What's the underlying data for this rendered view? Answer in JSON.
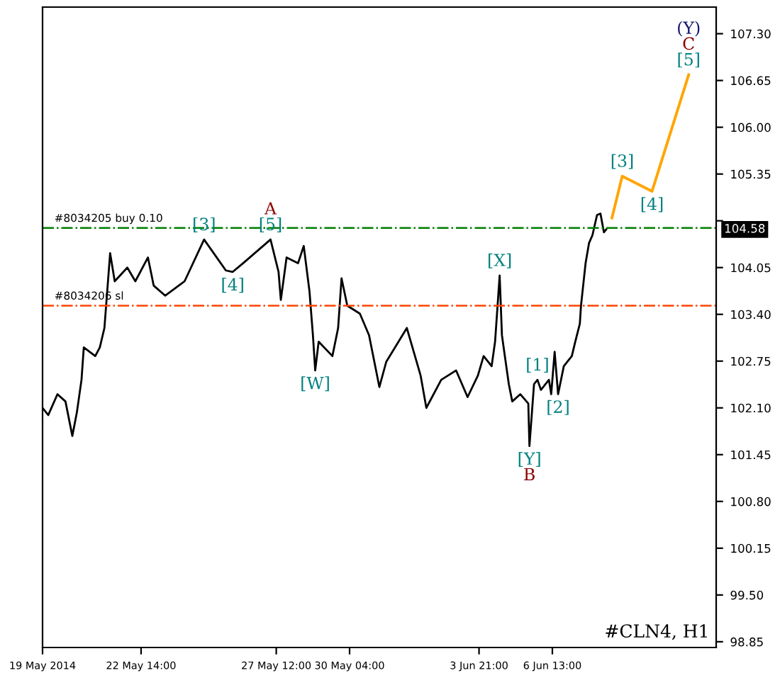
{
  "chart_data": {
    "type": "line",
    "xlim": [
      "2014-05-19T00:00",
      "2014-06-12T12:00"
    ],
    "ylim": [
      98.77,
      107.67
    ],
    "xticks": [
      {
        "value": "2014-05-19T00:00",
        "label": "19 May 2014"
      },
      {
        "value": "2014-05-22T14:00",
        "label": "22 May 14:00"
      },
      {
        "value": "2014-05-27T12:00",
        "label": "27 May 12:00"
      },
      {
        "value": "2014-05-30T04:00",
        "label": "30 May 04:00"
      },
      {
        "value": "2014-06-03T21:00",
        "label": "3 Jun 21:00"
      },
      {
        "value": "2014-06-06T13:00",
        "label": "6 Jun 13:00"
      }
    ],
    "yticks": [
      {
        "value": 98.85,
        "label": "98.85"
      },
      {
        "value": 99.5,
        "label": "99.50"
      },
      {
        "value": 100.15,
        "label": "100.15"
      },
      {
        "value": 100.8,
        "label": "100.80"
      },
      {
        "value": 101.45,
        "label": "101.45"
      },
      {
        "value": 102.1,
        "label": "102.10"
      },
      {
        "value": 102.75,
        "label": "102.75"
      },
      {
        "value": 103.4,
        "label": "103.40"
      },
      {
        "value": 104.05,
        "label": "104.05"
      },
      {
        "value": 104.7,
        "label": null
      },
      {
        "value": 105.35,
        "label": "105.35"
      },
      {
        "value": 106.0,
        "label": "106.00"
      },
      {
        "value": 106.65,
        "label": "106.65"
      },
      {
        "value": 107.3,
        "label": "107.30"
      }
    ],
    "grid": false,
    "series": [
      {
        "color": "#000000",
        "x": [
          "2014-05-19T00:00",
          "2014-05-19T05:00",
          "2014-05-19T13:00",
          "2014-05-19T20:00",
          "2014-05-20T02:00",
          "2014-05-20T06:00",
          "2014-05-20T10:00",
          "2014-05-20T12:00",
          "2014-05-20T22:00",
          "2014-05-21T02:00",
          "2014-05-21T06:00",
          "2014-05-21T11:00",
          "2014-05-21T15:00",
          "2014-05-22T02:00",
          "2014-05-22T09:00",
          "2014-05-22T20:00",
          "2014-05-23T01:00",
          "2014-05-23T11:00",
          "2014-05-24T04:00",
          "2014-05-24T21:00",
          "2014-05-25T16:00",
          "2014-05-25T22:00",
          "2014-05-26T07:00",
          "2014-05-27T07:00",
          "2014-05-27T14:00",
          "2014-05-27T16:00",
          "2014-05-27T21:00",
          "2014-05-28T07:00",
          "2014-05-28T12:00",
          "2014-05-28T17:00",
          "2014-05-28T20:00",
          "2014-05-28T22:00",
          "2014-05-29T01:00",
          "2014-05-29T13:00",
          "2014-05-29T18:00",
          "2014-05-29T21:00",
          "2014-05-30T02:00",
          "2014-05-30T13:00",
          "2014-05-30T21:00",
          "2014-05-31T06:00",
          "2014-05-31T12:00",
          "2014-06-01T06:00",
          "2014-06-01T18:00",
          "2014-06-01T23:00",
          "2014-06-02T12:00",
          "2014-06-03T01:00",
          "2014-06-03T11:00",
          "2014-06-03T20:00",
          "2014-06-04T01:00",
          "2014-06-04T08:00",
          "2014-06-04T11:00",
          "2014-06-04T15:00",
          "2014-06-04T17:00",
          "2014-06-04T19:00",
          "2014-06-04T23:00",
          "2014-06-05T02:00",
          "2014-06-05T09:00",
          "2014-06-05T16:00",
          "2014-06-05T17:00",
          "2014-06-05T21:00",
          "2014-06-06T00:00",
          "2014-06-06T03:00",
          "2014-06-06T10:00",
          "2014-06-06T12:00",
          "2014-06-06T15:00",
          "2014-06-06T18:00",
          "2014-06-06T23:00",
          "2014-06-07T06:00",
          "2014-06-07T09:00",
          "2014-06-07T13:00",
          "2014-06-07T14:00",
          "2014-06-07T18:00",
          "2014-06-07T21:00",
          "2014-06-08T00:00",
          "2014-06-08T04:00",
          "2014-06-08T07:00",
          "2014-06-08T10:00",
          "2014-06-08T12:00"
        ],
        "values": [
          102.1,
          102.0,
          102.29,
          102.19,
          101.71,
          102.04,
          102.49,
          102.94,
          102.82,
          102.94,
          103.21,
          104.25,
          103.86,
          104.05,
          103.86,
          104.19,
          103.8,
          103.66,
          103.86,
          104.44,
          104.01,
          103.99,
          104.11,
          104.44,
          103.99,
          103.6,
          104.19,
          104.11,
          104.35,
          103.72,
          103.11,
          102.62,
          103.02,
          102.82,
          103.21,
          103.9,
          103.52,
          103.41,
          103.11,
          102.39,
          102.74,
          103.21,
          102.55,
          102.1,
          102.49,
          102.62,
          102.25,
          102.55,
          102.82,
          102.68,
          103.02,
          103.94,
          103.11,
          102.88,
          102.43,
          102.19,
          102.29,
          102.16,
          101.57,
          102.43,
          102.49,
          102.35,
          102.49,
          102.29,
          102.88,
          102.29,
          102.68,
          102.82,
          103.02,
          103.27,
          103.52,
          104.11,
          104.39,
          104.5,
          104.78,
          104.8,
          104.54,
          104.58
        ]
      },
      {
        "color": "#ffa500",
        "x": [
          "2014-06-08T17:00",
          "2014-06-09T02:00",
          "2014-06-10T04:00",
          "2014-06-11T12:00"
        ],
        "values": [
          104.74,
          105.32,
          105.11,
          106.73
        ]
      }
    ],
    "ref_lines": [
      {
        "axis": "y",
        "value": 104.6,
        "label": "#8034205 buy 0.10",
        "color": "#008000",
        "line_style": "dashdot"
      },
      {
        "axis": "y",
        "value": 103.52,
        "label": "#8034206 sl",
        "color": "#ff4500",
        "line_style": "dashdot"
      }
    ],
    "annotations": [
      {
        "text": "[3]",
        "x": "2014-05-24T21:00",
        "y": 104.44
      },
      {
        "text": "[5]",
        "x": "2014-05-27T07:00",
        "y": 104.44
      },
      {
        "text": "A",
        "x": "2014-05-27T07:00",
        "y": 104.44
      },
      {
        "text": "[4]",
        "x": "2014-05-25T22:00",
        "y": 103.99
      },
      {
        "text": "[W]",
        "x": "2014-05-28T22:00",
        "y": 102.62
      },
      {
        "text": "[X]",
        "x": "2014-06-04T15:00",
        "y": 103.94
      },
      {
        "text": "[1]",
        "x": "2014-06-06T00:00",
        "y": 102.49
      },
      {
        "text": "[2]",
        "x": "2014-06-06T18:00",
        "y": 102.29
      },
      {
        "text": "[Y]",
        "x": "2014-06-05T17:00",
        "y": 101.57
      },
      {
        "text": "B",
        "x": "2014-06-05T17:00",
        "y": 101.57
      },
      {
        "text": "[3]",
        "x": "2014-06-09T02:00",
        "y": 105.32
      },
      {
        "text": "[4]",
        "x": "2014-06-10T04:00",
        "y": 105.11
      },
      {
        "text": "[5]",
        "x": "2014-06-11T12:00",
        "y": 106.73
      },
      {
        "text": "C",
        "x": "2014-06-11T12:00",
        "y": 106.73
      },
      {
        "text": "(Y)",
        "x": "2014-06-11T12:00",
        "y": 106.73
      },
      "104.58",
      "#CLN4, H1"
    ]
  }
}
